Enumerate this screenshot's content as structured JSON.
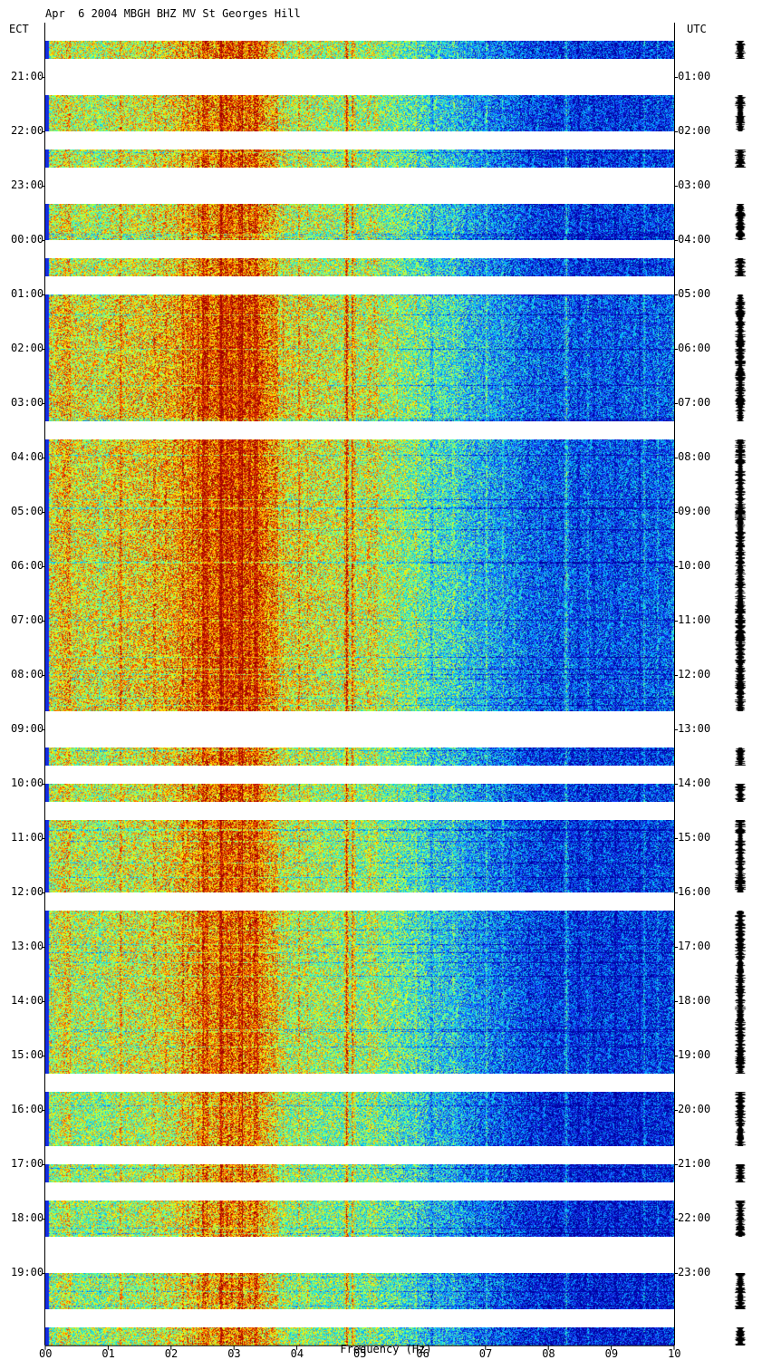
{
  "title": "Apr  6 2004 MBGH BHZ MV St Georges Hill",
  "left_timezone": "ECT",
  "right_timezone": "UTC",
  "xlabel": "Frequency (Hz)",
  "chart_data": {
    "type": "heatmap",
    "title": "Apr  6 2004 MBGH BHZ MV St Georges Hill",
    "xlabel": "Frequency (Hz)",
    "xlim": [
      0,
      10
    ],
    "x_ticks": [
      "00",
      "01",
      "02",
      "03",
      "04",
      "05",
      "06",
      "07",
      "08",
      "09",
      "10"
    ],
    "y_ticks_left": [
      "21:00",
      "22:00",
      "23:00",
      "00:00",
      "01:00",
      "02:00",
      "03:00",
      "04:00",
      "05:00",
      "06:00",
      "07:00",
      "08:00",
      "09:00",
      "10:00",
      "11:00",
      "12:00",
      "13:00",
      "14:00",
      "15:00",
      "16:00",
      "17:00",
      "18:00",
      "19:00"
    ],
    "y_ticks_right": [
      "01:00",
      "02:00",
      "03:00",
      "04:00",
      "05:00",
      "06:00",
      "07:00",
      "08:00",
      "09:00",
      "10:00",
      "11:00",
      "12:00",
      "13:00",
      "14:00",
      "15:00",
      "16:00",
      "17:00",
      "18:00",
      "19:00",
      "20:00",
      "21:00",
      "22:00",
      "23:00"
    ],
    "colormap": [
      "#0000a0",
      "#1a3cff",
      "#00c8ff",
      "#5fffa0",
      "#ffff00",
      "#ff5000",
      "#a00000"
    ],
    "data_segments_utc_hours": [
      [
        0.33,
        0.67
      ],
      [
        1.33,
        2.0
      ],
      [
        2.33,
        2.67
      ],
      [
        3.33,
        4.0
      ],
      [
        4.33,
        4.67
      ],
      [
        5.0,
        7.33
      ],
      [
        7.67,
        12.67
      ],
      [
        13.33,
        13.67
      ],
      [
        14.0,
        14.33
      ],
      [
        14.67,
        16.0
      ],
      [
        16.33,
        19.33
      ],
      [
        19.67,
        20.67
      ],
      [
        21.0,
        21.33
      ],
      [
        21.67,
        22.33
      ],
      [
        23.0,
        23.67
      ],
      [
        24.0,
        24.33
      ]
    ]
  }
}
